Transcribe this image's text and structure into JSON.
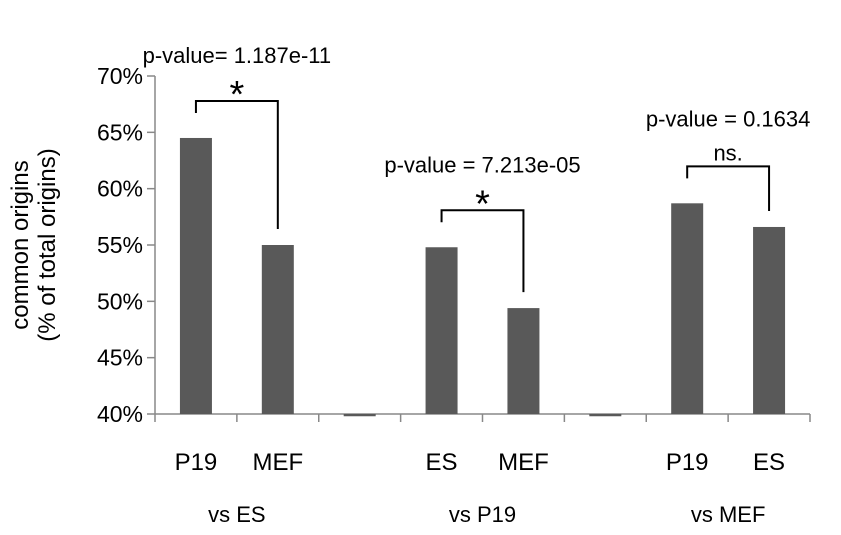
{
  "chart_data": {
    "type": "bar",
    "ylabel_line1": "common origins",
    "ylabel_line2": "(% of total origins)",
    "ylim": [
      0.4,
      0.7
    ],
    "yticks": [
      "40%",
      "45%",
      "50%",
      "55%",
      "60%",
      "65%",
      "70%"
    ],
    "ytick_values": [
      0.4,
      0.45,
      0.5,
      0.55,
      0.6,
      0.65,
      0.7
    ],
    "grid": false,
    "bar_color": "#595959",
    "categories": [
      "P19",
      "MEF",
      "",
      "ES",
      "MEF",
      "",
      "P19",
      "ES"
    ],
    "values": [
      0.645,
      0.55,
      0.398,
      0.548,
      0.494,
      0.398,
      0.587,
      0.566
    ],
    "groups": [
      {
        "label": "vs ES",
        "bars": [
          0,
          1
        ]
      },
      {
        "label": "vs P19",
        "bars": [
          3,
          4
        ]
      },
      {
        "label": "vs MEF",
        "bars": [
          6,
          7
        ]
      }
    ],
    "comparisons": [
      {
        "pvalue": "p-value= 1.187e-11",
        "mark": "*",
        "bars": [
          0,
          1
        ]
      },
      {
        "pvalue": "p-value = 7.213e-05",
        "mark": "*",
        "bars": [
          3,
          4
        ]
      },
      {
        "pvalue": "p-value = 0.1634",
        "mark": "ns.",
        "bars": [
          6,
          7
        ]
      }
    ]
  }
}
